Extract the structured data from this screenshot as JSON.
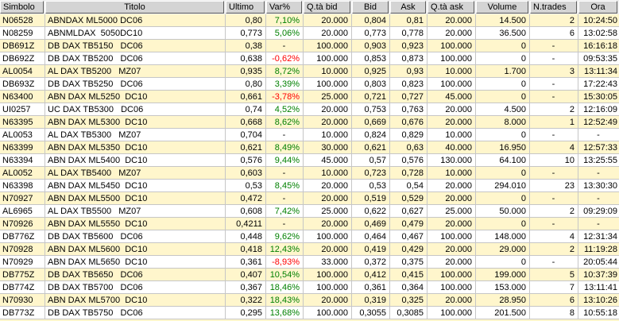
{
  "table": {
    "columns": [
      {
        "key": "simbolo",
        "label": "Simbolo"
      },
      {
        "key": "titolo",
        "label": "Titolo"
      },
      {
        "key": "ultimo",
        "label": "Ultimo"
      },
      {
        "key": "var",
        "label": "Var%"
      },
      {
        "key": "qta_bid",
        "label": "Q.tà bid"
      },
      {
        "key": "bid",
        "label": "Bid"
      },
      {
        "key": "ask",
        "label": "Ask"
      },
      {
        "key": "qta_ask",
        "label": "Q.tà ask"
      },
      {
        "key": "volume",
        "label": "Volume"
      },
      {
        "key": "ntrades",
        "label": "N.trades"
      },
      {
        "key": "ora",
        "label": "Ora"
      }
    ],
    "rows": [
      {
        "simbolo": "N06528",
        "titolo": "ABNDAX ML5000 DC06",
        "ultimo": "0,80",
        "var": "7,10%",
        "qta_bid": "20.000",
        "bid": "0,804",
        "ask": "0,81",
        "qta_ask": "20.000",
        "volume": "14.500",
        "ntrades": "2",
        "ora": "10:24:50"
      },
      {
        "simbolo": "N08259",
        "titolo": "ABNMLDAX  5050DC10",
        "ultimo": "0,773",
        "var": "5,06%",
        "qta_bid": "20.000",
        "bid": "0,773",
        "ask": "0,778",
        "qta_ask": "20.000",
        "volume": "36.500",
        "ntrades": "6",
        "ora": "13:02:58"
      },
      {
        "simbolo": "DB691Z",
        "titolo": "DB DAX TB5150   DC06",
        "ultimo": "0,38",
        "var": "-",
        "qta_bid": "100.000",
        "bid": "0,903",
        "ask": "0,923",
        "qta_ask": "100.000",
        "volume": "0",
        "ntrades": "-",
        "ora": "16:16:18"
      },
      {
        "simbolo": "DB692Z",
        "titolo": "DB DAX TB5200   DC06",
        "ultimo": "0,638",
        "var": "-0,62%",
        "qta_bid": "100.000",
        "bid": "0,853",
        "ask": "0,873",
        "qta_ask": "100.000",
        "volume": "0",
        "ntrades": "-",
        "ora": "09:53:35"
      },
      {
        "simbolo": "AL0054",
        "titolo": "AL DAX TB5200   MZ07",
        "ultimo": "0,935",
        "var": "8,72%",
        "qta_bid": "10.000",
        "bid": "0,925",
        "ask": "0,93",
        "qta_ask": "10.000",
        "volume": "1.700",
        "ntrades": "3",
        "ora": "13:11:34"
      },
      {
        "simbolo": "DB693Z",
        "titolo": "DB DAX TB5250   DC06",
        "ultimo": "0,80",
        "var": "3,39%",
        "qta_bid": "100.000",
        "bid": "0,803",
        "ask": "0,823",
        "qta_ask": "100.000",
        "volume": "0",
        "ntrades": "-",
        "ora": "17:22:43"
      },
      {
        "simbolo": "N63400",
        "titolo": "ABN DAX ML5250  DC10",
        "ultimo": "0,661",
        "var": "-3,78%",
        "qta_bid": "25.000",
        "bid": "0,721",
        "ask": "0,727",
        "qta_ask": "45.000",
        "volume": "0",
        "ntrades": "-",
        "ora": "15:30:05"
      },
      {
        "simbolo": "UI0257",
        "titolo": "UC DAX TB5300   DC06",
        "ultimo": "0,74",
        "var": "4,52%",
        "qta_bid": "20.000",
        "bid": "0,753",
        "ask": "0,763",
        "qta_ask": "20.000",
        "volume": "4.500",
        "ntrades": "2",
        "ora": "12:16:09"
      },
      {
        "simbolo": "N63395",
        "titolo": "ABN DAX ML5300  DC10",
        "ultimo": "0,668",
        "var": "8,62%",
        "qta_bid": "20.000",
        "bid": "0,669",
        "ask": "0,676",
        "qta_ask": "20.000",
        "volume": "8.000",
        "ntrades": "1",
        "ora": "12:52:49"
      },
      {
        "simbolo": "AL0053",
        "titolo": "AL DAX TB5300   MZ07",
        "ultimo": "0,704",
        "var": "-",
        "qta_bid": "10.000",
        "bid": "0,824",
        "ask": "0,829",
        "qta_ask": "10.000",
        "volume": "0",
        "ntrades": "-",
        "ora": "-"
      },
      {
        "simbolo": "N63399",
        "titolo": "ABN DAX ML5350  DC10",
        "ultimo": "0,621",
        "var": "8,49%",
        "qta_bid": "30.000",
        "bid": "0,621",
        "ask": "0,63",
        "qta_ask": "40.000",
        "volume": "16.950",
        "ntrades": "4",
        "ora": "12:57:33"
      },
      {
        "simbolo": "N63394",
        "titolo": "ABN DAX ML5400  DC10",
        "ultimo": "0,576",
        "var": "9,44%",
        "qta_bid": "45.000",
        "bid": "0,57",
        "ask": "0,576",
        "qta_ask": "130.000",
        "volume": "64.100",
        "ntrades": "10",
        "ora": "13:25:55"
      },
      {
        "simbolo": "AL0052",
        "titolo": "AL DAX TB5400   MZ07",
        "ultimo": "0,603",
        "var": "-",
        "qta_bid": "10.000",
        "bid": "0,723",
        "ask": "0,728",
        "qta_ask": "10.000",
        "volume": "0",
        "ntrades": "-",
        "ora": "-"
      },
      {
        "simbolo": "N63398",
        "titolo": "ABN DAX ML5450  DC10",
        "ultimo": "0,53",
        "var": "8,45%",
        "qta_bid": "20.000",
        "bid": "0,53",
        "ask": "0,54",
        "qta_ask": "20.000",
        "volume": "294.010",
        "ntrades": "23",
        "ora": "13:30:30"
      },
      {
        "simbolo": "N70927",
        "titolo": "ABN DAX ML5500  DC10",
        "ultimo": "0,472",
        "var": "-",
        "qta_bid": "20.000",
        "bid": "0,519",
        "ask": "0,529",
        "qta_ask": "20.000",
        "volume": "0",
        "ntrades": "-",
        "ora": "-"
      },
      {
        "simbolo": "AL6965",
        "titolo": "AL DAX TB5500   MZ07",
        "ultimo": "0,608",
        "var": "7,42%",
        "qta_bid": "25.000",
        "bid": "0,622",
        "ask": "0,627",
        "qta_ask": "25.000",
        "volume": "50.000",
        "ntrades": "2",
        "ora": "09:29:09"
      },
      {
        "simbolo": "N70926",
        "titolo": "ABN DAX ML5550  DC10",
        "ultimo": "0,4211",
        "var": "-",
        "qta_bid": "20.000",
        "bid": "0,469",
        "ask": "0,479",
        "qta_ask": "20.000",
        "volume": "0",
        "ntrades": "-",
        "ora": "-"
      },
      {
        "simbolo": "DB776Z",
        "titolo": "DB DAX TB5600   DC06",
        "ultimo": "0,448",
        "var": "9,62%",
        "qta_bid": "100.000",
        "bid": "0,464",
        "ask": "0,467",
        "qta_ask": "100.000",
        "volume": "148.000",
        "ntrades": "4",
        "ora": "12:31:34"
      },
      {
        "simbolo": "N70928",
        "titolo": "ABN DAX ML5600  DC10",
        "ultimo": "0,418",
        "var": "12,43%",
        "qta_bid": "20.000",
        "bid": "0,419",
        "ask": "0,429",
        "qta_ask": "20.000",
        "volume": "29.000",
        "ntrades": "2",
        "ora": "11:19:28"
      },
      {
        "simbolo": "N70929",
        "titolo": "ABN DAX ML5650  DC10",
        "ultimo": "0,361",
        "var": "-8,93%",
        "qta_bid": "33.000",
        "bid": "0,372",
        "ask": "0,375",
        "qta_ask": "20.000",
        "volume": "0",
        "ntrades": "-",
        "ora": "20:05:44"
      },
      {
        "simbolo": "DB775Z",
        "titolo": "DB DAX TB5650   DC06",
        "ultimo": "0,407",
        "var": "10,54%",
        "qta_bid": "100.000",
        "bid": "0,412",
        "ask": "0,415",
        "qta_ask": "100.000",
        "volume": "199.000",
        "ntrades": "5",
        "ora": "10:37:39"
      },
      {
        "simbolo": "DB774Z",
        "titolo": "DB DAX TB5700   DC06",
        "ultimo": "0,367",
        "var": "18,46%",
        "qta_bid": "100.000",
        "bid": "0,361",
        "ask": "0,364",
        "qta_ask": "100.000",
        "volume": "153.000",
        "ntrades": "7",
        "ora": "13:11:41"
      },
      {
        "simbolo": "N70930",
        "titolo": "ABN DAX ML5700  DC10",
        "ultimo": "0,322",
        "var": "18,43%",
        "qta_bid": "20.000",
        "bid": "0,319",
        "ask": "0,325",
        "qta_ask": "20.000",
        "volume": "28.950",
        "ntrades": "6",
        "ora": "13:10:26"
      },
      {
        "simbolo": "DB773Z",
        "titolo": "DB DAX TB5750   DC06",
        "ultimo": "0,295",
        "var": "13,68%",
        "qta_bid": "100.000",
        "bid": "0,3055",
        "ask": "0,3085",
        "qta_ask": "100.000",
        "volume": "201.500",
        "ntrades": "8",
        "ora": "10:55:18"
      }
    ]
  },
  "colors": {
    "positive_change": "#008000",
    "negative_change": "#FF0000",
    "row_stripe": "#FFF6CC",
    "row_plain": "#FFFFFF",
    "header_bg": "#D4D4D4",
    "grid_line": "#C6C6C6"
  }
}
